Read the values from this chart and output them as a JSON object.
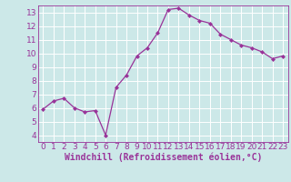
{
  "x": [
    0,
    1,
    2,
    3,
    4,
    5,
    6,
    7,
    8,
    9,
    10,
    11,
    12,
    13,
    14,
    15,
    16,
    17,
    18,
    19,
    20,
    21,
    22,
    23
  ],
  "y": [
    5.9,
    6.5,
    6.7,
    6.0,
    5.7,
    5.8,
    4.0,
    7.5,
    8.4,
    9.8,
    10.4,
    11.5,
    13.2,
    13.3,
    12.8,
    12.4,
    12.2,
    11.4,
    11.0,
    10.6,
    10.4,
    10.1,
    9.6,
    9.8
  ],
  "line_color": "#993399",
  "marker": "D",
  "marker_size": 2.0,
  "bg_color": "#cce8e8",
  "grid_color": "#bbdddd",
  "xlabel": "Windchill (Refroidissement éolien,°C)",
  "xlim": [
    -0.5,
    23.5
  ],
  "ylim": [
    3.5,
    13.5
  ],
  "yticks": [
    4,
    5,
    6,
    7,
    8,
    9,
    10,
    11,
    12,
    13
  ],
  "xticks": [
    0,
    1,
    2,
    3,
    4,
    5,
    6,
    7,
    8,
    9,
    10,
    11,
    12,
    13,
    14,
    15,
    16,
    17,
    18,
    19,
    20,
    21,
    22,
    23
  ],
  "tick_color": "#993399",
  "label_color": "#993399",
  "axis_color": "#993399",
  "tick_fontsize": 6.5,
  "xlabel_fontsize": 7.0
}
